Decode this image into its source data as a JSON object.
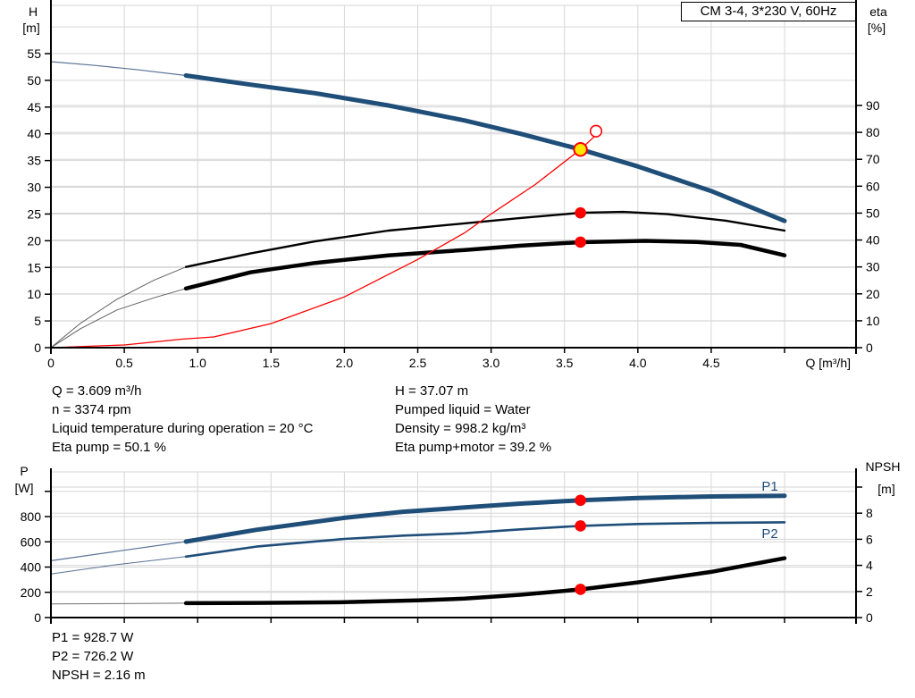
{
  "title_box": {
    "label": "CM 3-4, 3*230 V, 60Hz"
  },
  "colors": {
    "curve_blue": "#1f4e79",
    "curve_blue_thin": "#5a7396",
    "curve_black": "#000000",
    "curve_gray_thin": "#606060",
    "system_red": "#ff0000",
    "marker_red": "#fe0000",
    "duty_fill": "#ffe600",
    "duty_stroke": "#ff0000",
    "grid": "#d6d6d6",
    "axis": "#000000"
  },
  "chart_data": [
    {
      "type": "line",
      "name": "h-q-chart",
      "title": "CM 3-4, 3*230 V, 60Hz",
      "xlabel": "Q [m³/h]",
      "ylabel_left_lines": [
        "H",
        "[m]"
      ],
      "ylabel_right_lines": [
        "eta",
        "[%]"
      ],
      "xlim": [
        0,
        5.49
      ],
      "xmax": 5.487,
      "ylim_left": [
        0,
        64
      ],
      "ylim_right": [
        0,
        127
      ],
      "grid": true,
      "x_ticks": [
        {
          "v": 0,
          "label": "0"
        },
        {
          "v": 0.5,
          "label": "0.5"
        },
        {
          "v": 1.0,
          "label": "1.0"
        },
        {
          "v": 1.5,
          "label": "1.5"
        },
        {
          "v": 2.0,
          "label": "2.0"
        },
        {
          "v": 2.5,
          "label": "2.5"
        },
        {
          "v": 3.0,
          "label": "3.0"
        },
        {
          "v": 3.5,
          "label": "3.5"
        },
        {
          "v": 4.0,
          "label": "4.0"
        },
        {
          "v": 4.5,
          "label": "4.5"
        },
        {
          "v": 5.0,
          "label": ""
        }
      ],
      "y_left_ticks": [
        {
          "v": 0,
          "label": "0"
        },
        {
          "v": 5,
          "label": "5"
        },
        {
          "v": 10,
          "label": "10"
        },
        {
          "v": 15,
          "label": "15"
        },
        {
          "v": 20,
          "label": "20"
        },
        {
          "v": 25,
          "label": "25"
        },
        {
          "v": 30,
          "label": "30"
        },
        {
          "v": 35,
          "label": "35"
        },
        {
          "v": 40,
          "label": "40"
        },
        {
          "v": 45,
          "label": "45"
        },
        {
          "v": 50,
          "label": "50"
        },
        {
          "v": 55,
          "label": "55"
        }
      ],
      "y_right_ticks": [
        {
          "v": 0,
          "label": "0"
        },
        {
          "v": 10,
          "label": "10"
        },
        {
          "v": 20,
          "label": "20"
        },
        {
          "v": 30,
          "label": "30"
        },
        {
          "v": 40,
          "label": "40"
        },
        {
          "v": 50,
          "label": "50"
        },
        {
          "v": 60,
          "label": "60"
        },
        {
          "v": 70,
          "label": "70"
        },
        {
          "v": 80,
          "label": "80"
        },
        {
          "v": 90,
          "label": "90"
        }
      ],
      "y_left_grid": [
        5,
        10,
        15,
        20,
        25,
        30,
        35,
        40,
        45,
        50,
        55,
        60
      ],
      "y_right_grid": [
        10,
        20,
        30,
        40,
        50,
        60,
        70,
        80,
        90
      ],
      "series": [
        {
          "name": "head-curve-extension",
          "axis": "left",
          "color": "#5a7396",
          "width": 1.2,
          "points": [
            [
              0,
              53.5
            ],
            [
              0.3,
              52.8
            ],
            [
              0.6,
              51.95
            ],
            [
              0.92,
              50.9
            ]
          ]
        },
        {
          "name": "head-curve",
          "axis": "left",
          "color": "#1f4e79",
          "width": 5,
          "points": [
            [
              0.92,
              50.9
            ],
            [
              1.36,
              49.2
            ],
            [
              1.8,
              47.6
            ],
            [
              2.3,
              45.3
            ],
            [
              2.82,
              42.5
            ],
            [
              3.2,
              40.0
            ],
            [
              3.609,
              37.07
            ],
            [
              4.0,
              33.9
            ],
            [
              4.5,
              29.3
            ],
            [
              5.0,
              23.7
            ]
          ]
        },
        {
          "name": "eta-pump-extension",
          "axis": "right",
          "color": "#606060",
          "width": 1,
          "points": [
            [
              0,
              0
            ],
            [
              0.2,
              9
            ],
            [
              0.45,
              18
            ],
            [
              0.7,
              25
            ],
            [
              0.92,
              30
            ]
          ]
        },
        {
          "name": "eta-pump-curve",
          "axis": "right",
          "color": "#000000",
          "width": 2.4,
          "points": [
            [
              0.92,
              30
            ],
            [
              1.36,
              35
            ],
            [
              1.8,
              39.5
            ],
            [
              2.3,
              43.5
            ],
            [
              2.82,
              46.2
            ],
            [
              3.2,
              48.2
            ],
            [
              3.609,
              50.1
            ],
            [
              3.9,
              50.45
            ],
            [
              4.2,
              49.6
            ],
            [
              4.6,
              47.2
            ],
            [
              5.0,
              43.5
            ]
          ]
        },
        {
          "name": "eta-pump-motor-extension",
          "axis": "right",
          "color": "#606060",
          "width": 1,
          "points": [
            [
              0,
              0
            ],
            [
              0.2,
              7
            ],
            [
              0.45,
              14
            ],
            [
              0.7,
              18.5
            ],
            [
              0.92,
              22
            ]
          ]
        },
        {
          "name": "eta-pump-motor-curve",
          "axis": "right",
          "color": "#000000",
          "width": 4.5,
          "points": [
            [
              0.92,
              22
            ],
            [
              1.36,
              28
            ],
            [
              1.8,
              31.5
            ],
            [
              2.3,
              34.3
            ],
            [
              2.82,
              36.3
            ],
            [
              3.2,
              37.9
            ],
            [
              3.609,
              39.2
            ],
            [
              4.05,
              39.7
            ],
            [
              4.4,
              39.3
            ],
            [
              4.7,
              38.2
            ],
            [
              5.0,
              34.3
            ]
          ]
        },
        {
          "name": "system-curve",
          "axis": "left",
          "color": "#ff0000",
          "width": 1.3,
          "points": [
            [
              0,
              0
            ],
            [
              0.5,
              0.5
            ],
            [
              0.9,
              1.6
            ],
            [
              1.11,
              2.0
            ],
            [
              1.5,
              4.5
            ],
            [
              2.0,
              9.5
            ],
            [
              2.5,
              16.5
            ],
            [
              2.82,
              21.5
            ],
            [
              3.0,
              25.0
            ],
            [
              3.3,
              30.5
            ],
            [
              3.609,
              37.07
            ],
            [
              3.7,
              39.4
            ]
          ]
        }
      ],
      "markers": [
        {
          "q": 3.609,
          "v": 50.1,
          "axis": "right",
          "style": "dot",
          "name": "eta-pump-point-marker"
        },
        {
          "q": 3.609,
          "v": 39.2,
          "axis": "right",
          "style": "dot",
          "name": "eta-pump-motor-point-marker"
        },
        {
          "q": 3.715,
          "v": 40.5,
          "axis": "left",
          "style": "open",
          "name": "rated-point-marker"
        },
        {
          "q": 3.609,
          "v": 37.07,
          "axis": "left",
          "style": "duty",
          "name": "duty-point-marker"
        }
      ],
      "series_labels": []
    },
    {
      "type": "line",
      "name": "power-npsh-chart",
      "title": "",
      "xlabel": "",
      "ylabel_left_lines": [
        "P",
        "[W]"
      ],
      "ylabel_right_lines": [
        "NPSH",
        "[m]"
      ],
      "xlim": [
        0,
        5.49
      ],
      "xmax": 5.487,
      "ylim_left": [
        0,
        1150
      ],
      "ylim_right": [
        0,
        11.2
      ],
      "grid": true,
      "x_ticks": [
        {
          "v": 0,
          "label": ""
        },
        {
          "v": 0.5,
          "label": ""
        },
        {
          "v": 1.0,
          "label": ""
        },
        {
          "v": 1.5,
          "label": ""
        },
        {
          "v": 2.0,
          "label": ""
        },
        {
          "v": 2.5,
          "label": ""
        },
        {
          "v": 3.0,
          "label": ""
        },
        {
          "v": 3.5,
          "label": ""
        },
        {
          "v": 4.0,
          "label": ""
        },
        {
          "v": 4.5,
          "label": ""
        },
        {
          "v": 5.0,
          "label": ""
        }
      ],
      "y_left_ticks": [
        {
          "v": 0,
          "label": "0"
        },
        {
          "v": 200,
          "label": "200"
        },
        {
          "v": 400,
          "label": "400"
        },
        {
          "v": 600,
          "label": "600"
        },
        {
          "v": 800,
          "label": "800"
        },
        {
          "v": 1000,
          "label": ""
        }
      ],
      "y_right_ticks": [
        {
          "v": 0,
          "label": "0"
        },
        {
          "v": 2,
          "label": "2"
        },
        {
          "v": 4,
          "label": "4"
        },
        {
          "v": 6,
          "label": "6"
        },
        {
          "v": 8,
          "label": "8"
        },
        {
          "v": 10,
          "label": ""
        }
      ],
      "y_left_grid": [
        200,
        400,
        600,
        800,
        1000
      ],
      "y_right_grid": [
        2,
        4,
        6,
        8,
        10
      ],
      "series": [
        {
          "name": "p1-curve-extension",
          "axis": "left",
          "color": "#5a7396",
          "width": 1.2,
          "points": [
            [
              0,
              450
            ],
            [
              0.45,
              525
            ],
            [
              0.92,
              602
            ]
          ]
        },
        {
          "name": "p1-curve",
          "axis": "left",
          "color": "#1f4e79",
          "width": 5,
          "points": [
            [
              0.92,
              602
            ],
            [
              1.4,
              695
            ],
            [
              2.0,
              790
            ],
            [
              2.4,
              838
            ],
            [
              2.82,
              872
            ],
            [
              3.2,
              903
            ],
            [
              3.609,
              928.7
            ],
            [
              4.0,
              947
            ],
            [
              4.5,
              959
            ],
            [
              5.0,
              965
            ]
          ]
        },
        {
          "name": "p2-curve-extension",
          "axis": "left",
          "color": "#5a7396",
          "width": 1,
          "points": [
            [
              0,
              345
            ],
            [
              0.45,
              420
            ],
            [
              0.92,
              483
            ]
          ]
        },
        {
          "name": "p2-curve",
          "axis": "left",
          "color": "#1f4e79",
          "width": 2.6,
          "points": [
            [
              0.92,
              483
            ],
            [
              1.4,
              562
            ],
            [
              2.0,
              623
            ],
            [
              2.4,
              649
            ],
            [
              2.82,
              668
            ],
            [
              3.2,
              699
            ],
            [
              3.609,
              726.2
            ],
            [
              4.0,
              741
            ],
            [
              4.5,
              750
            ],
            [
              5.0,
              755
            ]
          ]
        },
        {
          "name": "npsh-curve-extension",
          "axis": "right",
          "color": "#707070",
          "width": 1,
          "points": [
            [
              0,
              1.05
            ],
            [
              0.45,
              1.07
            ],
            [
              0.92,
              1.1
            ]
          ]
        },
        {
          "name": "npsh-curve",
          "axis": "right",
          "color": "#000000",
          "width": 4.5,
          "points": [
            [
              0.92,
              1.1
            ],
            [
              1.4,
              1.12
            ],
            [
              2.0,
              1.18
            ],
            [
              2.5,
              1.32
            ],
            [
              2.82,
              1.45
            ],
            [
              3.2,
              1.75
            ],
            [
              3.609,
              2.16
            ],
            [
              4.0,
              2.7
            ],
            [
              4.5,
              3.5
            ],
            [
              5.0,
              4.55
            ]
          ]
        }
      ],
      "markers": [
        {
          "q": 3.609,
          "v": 928.7,
          "axis": "left",
          "style": "dot",
          "name": "p1-point-marker"
        },
        {
          "q": 3.609,
          "v": 726.2,
          "axis": "left",
          "style": "dot",
          "name": "p2-point-marker"
        },
        {
          "q": 3.609,
          "v": 2.16,
          "axis": "right",
          "style": "dot",
          "name": "npsh-point-marker"
        }
      ],
      "series_labels": [
        {
          "text": "P1",
          "q": 4.9,
          "v": 1041
        },
        {
          "text": "P2",
          "q": 4.9,
          "v": 665
        }
      ]
    }
  ],
  "stats_top": {
    "left": [
      "Q = 3.609 m³/h",
      "n = 3374 rpm",
      "Liquid temperature during operation = 20 °C",
      "Eta pump = 50.1 %"
    ],
    "right": [
      "H = 37.07 m",
      "Pumped liquid = Water",
      "Density = 998.2 kg/m³",
      "Eta pump+motor = 39.2 %"
    ]
  },
  "stats_bottom": [
    "P1 = 928.7 W",
    "P2 = 726.2 W",
    "NPSH = 2.16 m"
  ]
}
